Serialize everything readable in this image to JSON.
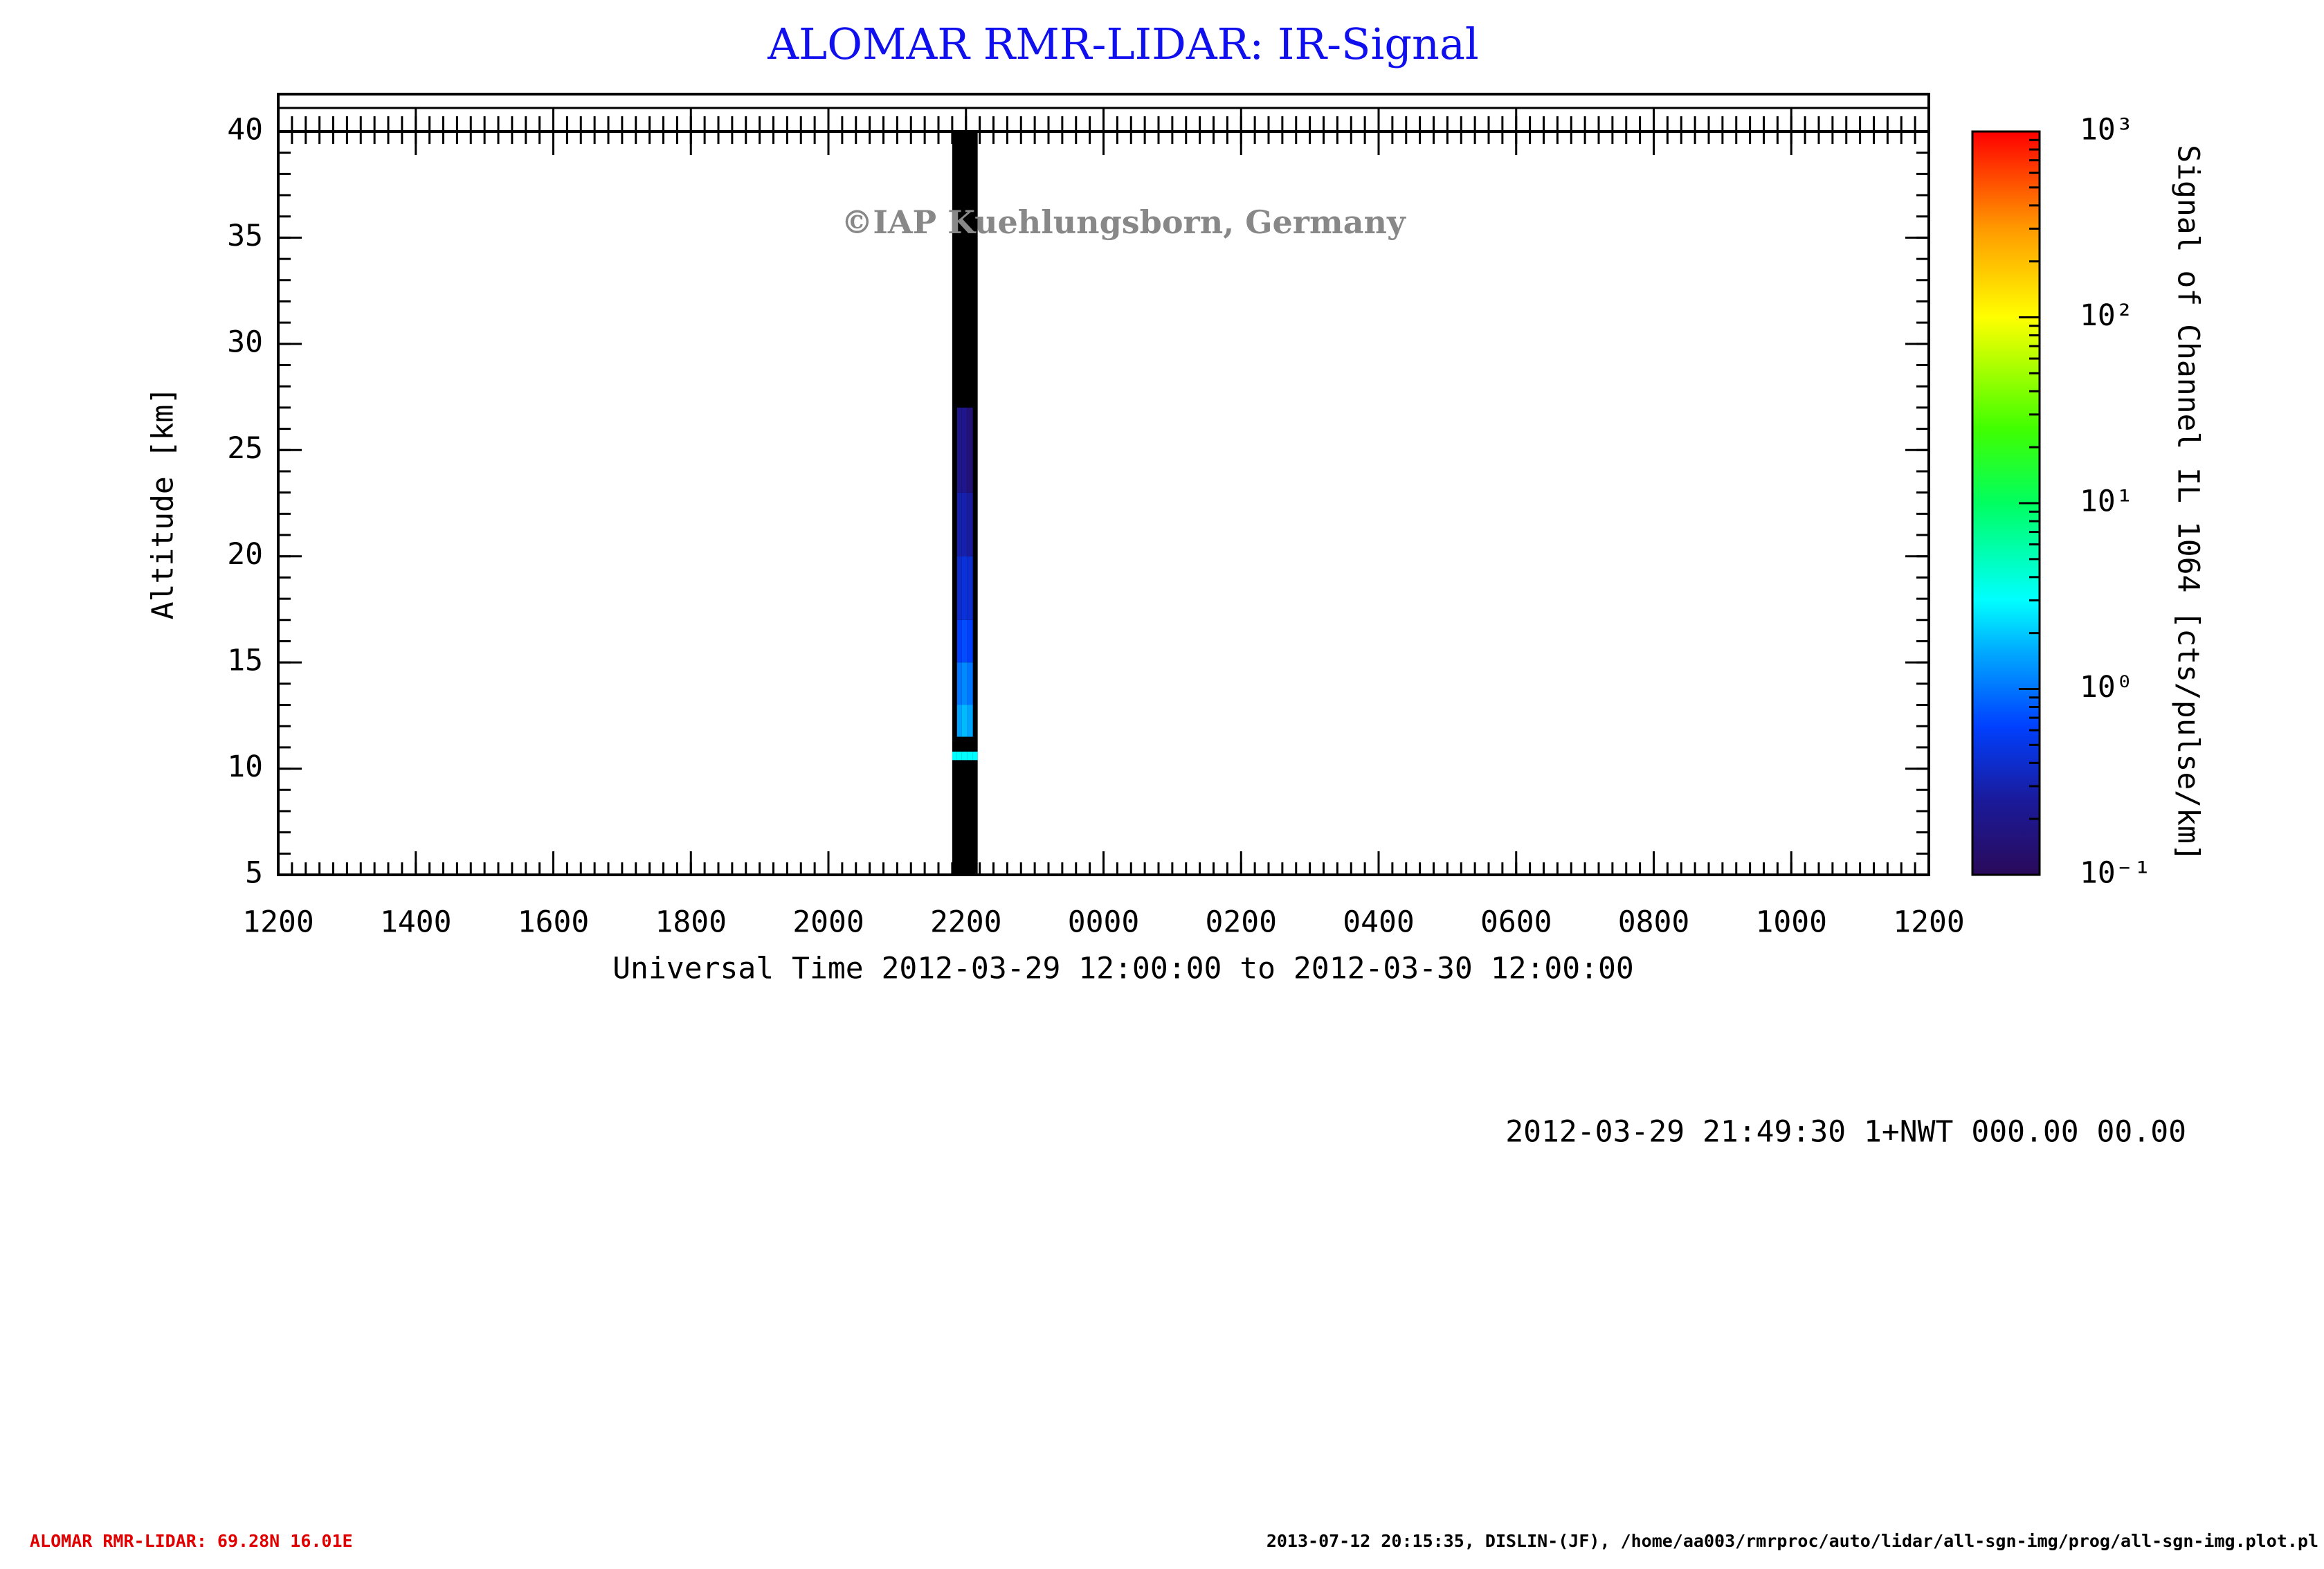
{
  "chart_data": {
    "type": "heatmap",
    "title": "ALOMAR RMR-LIDAR: IR-Signal",
    "xlabel": "Universal Time 2012-03-29 12:00:00 to 2012-03-30 12:00:00",
    "ylabel": "Altitude [km]",
    "colorbar_label": "Signal of Channel IL 1064 [cts/pulse/km]",
    "annotation": "©IAP Kuehlungsborn, Germany",
    "info": "2012-03-29 21:49:30 1+NWT 000.00 00.00",
    "footer_left": "ALOMAR RMR-LIDAR: 69.28N 16.01E",
    "footer_right": "2013-07-12 20:15:35, DISLIN-(JF), /home/aa003/rmrproc/auto/lidar/all-sgn-img/prog/all-sgn-img.plot.pl",
    "xlim": [
      0,
      24
    ],
    "xticks": [
      {
        "value": 0,
        "label": "1200"
      },
      {
        "value": 2,
        "label": "1400"
      },
      {
        "value": 4,
        "label": "1600"
      },
      {
        "value": 6,
        "label": "1800"
      },
      {
        "value": 8,
        "label": "2000"
      },
      {
        "value": 10,
        "label": "2200"
      },
      {
        "value": 12,
        "label": "0000"
      },
      {
        "value": 14,
        "label": "0200"
      },
      {
        "value": 16,
        "label": "0400"
      },
      {
        "value": 18,
        "label": "0600"
      },
      {
        "value": 20,
        "label": "0800"
      },
      {
        "value": 22,
        "label": "1000"
      },
      {
        "value": 24,
        "label": "1200"
      }
    ],
    "xminor": 0.2,
    "ylim": [
      5,
      40
    ],
    "yticks": [
      5,
      10,
      15,
      20,
      25,
      30,
      35,
      40
    ],
    "yminor": 1,
    "zlim": [
      0.1,
      1000
    ],
    "zlog": true,
    "zticks": [
      {
        "value": 0.1,
        "label": "10⁻¹"
      },
      {
        "value": 1,
        "label": "10⁰"
      },
      {
        "value": 10,
        "label": "10¹"
      },
      {
        "value": 100,
        "label": "10²"
      },
      {
        "value": 1000,
        "label": "10³"
      }
    ],
    "x_bins": [
      9.8,
      9.87,
      9.94,
      10.02,
      10.1,
      10.17
    ],
    "y_bins": [
      5,
      10.4,
      10.8,
      11.5,
      13,
      15,
      17,
      20,
      23,
      27,
      40
    ],
    "z": [
      [
        null,
        3,
        null,
        null,
        null,
        null,
        null,
        null,
        null,
        null
      ],
      [
        null,
        3,
        null,
        1.5,
        1,
        0.6,
        0.4,
        0.3,
        0.2,
        null
      ],
      [
        null,
        3,
        null,
        1.8,
        1.2,
        0.7,
        0.45,
        0.3,
        0.2,
        null
      ],
      [
        null,
        3,
        null,
        1.5,
        1,
        0.6,
        0.4,
        0.25,
        0.15,
        null
      ],
      [
        null,
        3,
        null,
        null,
        null,
        null,
        null,
        null,
        null,
        null
      ]
    ]
  }
}
